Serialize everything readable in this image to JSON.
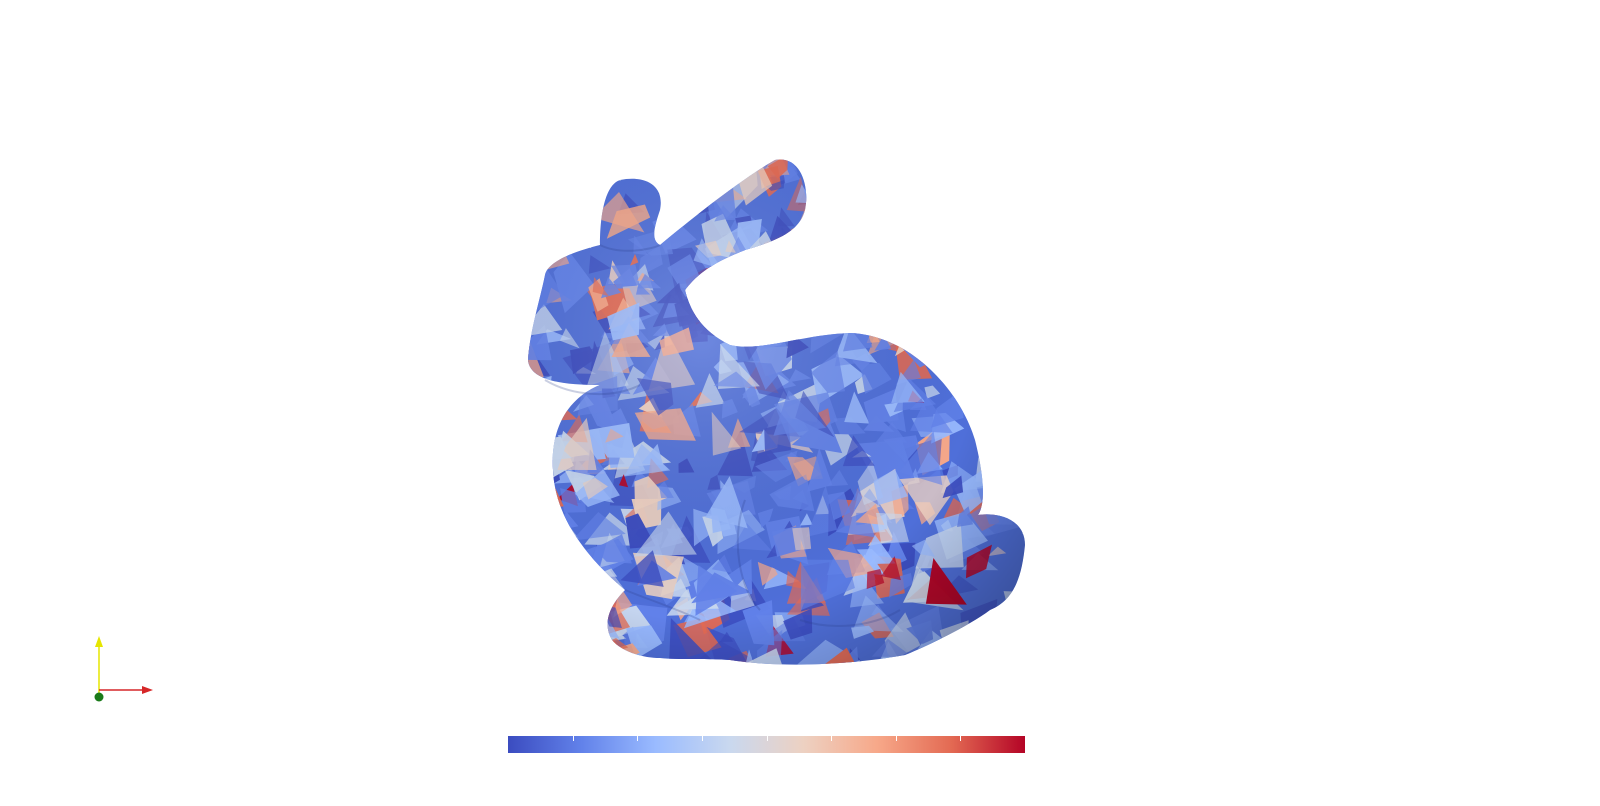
{
  "viewport": {
    "background": "#ffffff"
  },
  "model": {
    "name": "bunny-mesh",
    "colormap": "cool-to-warm"
  },
  "colormap": {
    "stops": [
      "#3b4cc0",
      "#6282ea",
      "#9abbff",
      "#c9d8ef",
      "#edd1c2",
      "#f7a889",
      "#e36a53",
      "#b40426"
    ],
    "tick_count": 7
  },
  "axes": {
    "x_color": "#d62728",
    "y_color": "#e6e600",
    "z_color": "#1a7a1a"
  }
}
